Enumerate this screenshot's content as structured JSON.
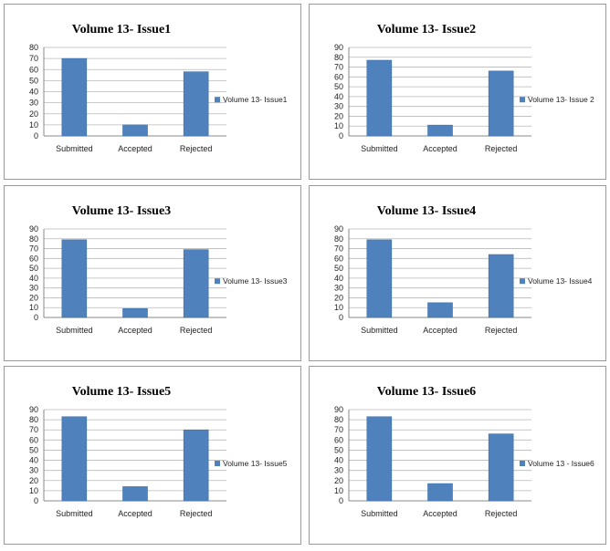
{
  "chart_data": [
    {
      "type": "bar",
      "title": "Volume 13- Issue1",
      "categories": [
        "Submitted",
        "Accepted",
        "Rejected"
      ],
      "series": [
        {
          "name": "Volume 13- Issue1",
          "values": [
            70,
            10,
            58
          ]
        }
      ],
      "ylim": [
        0,
        80
      ],
      "yticks": [
        "0",
        "10",
        "20",
        "30",
        "40",
        "50",
        "60",
        "70",
        "80"
      ],
      "grid": true,
      "legend": "right"
    },
    {
      "type": "bar",
      "title": "Volume 13- Issue2",
      "categories": [
        "Submitted",
        "Accepted",
        "Rejected"
      ],
      "series": [
        {
          "name": "Volume 13- Issue 2",
          "values": [
            77,
            11,
            66
          ]
        }
      ],
      "ylim": [
        0,
        90
      ],
      "yticks": [
        "0",
        "10",
        "20",
        "30",
        "40",
        "50",
        "60",
        "70",
        "80",
        "90"
      ],
      "grid": true,
      "legend": "right"
    },
    {
      "type": "bar",
      "title": "Volume 13- Issue3",
      "categories": [
        "Submitted",
        "Accepted",
        "Rejected"
      ],
      "series": [
        {
          "name": "Volume 13- Issue3",
          "values": [
            79,
            9,
            69
          ]
        }
      ],
      "ylim": [
        0,
        90
      ],
      "yticks": [
        "0",
        "10",
        "20",
        "30",
        "40",
        "50",
        "60",
        "70",
        "80",
        "90"
      ],
      "grid": true,
      "legend": "right"
    },
    {
      "type": "bar",
      "title": "Volume 13- Issue4",
      "categories": [
        "Submitted",
        "Accepted",
        "Rejected"
      ],
      "series": [
        {
          "name": "Volume 13- Issue4",
          "values": [
            79,
            15,
            64
          ]
        }
      ],
      "ylim": [
        0,
        90
      ],
      "yticks": [
        "0",
        "10",
        "20",
        "30",
        "40",
        "50",
        "60",
        "70",
        "80",
        "90"
      ],
      "grid": true,
      "legend": "right"
    },
    {
      "type": "bar",
      "title": "Volume 13- Issue5",
      "categories": [
        "Submitted",
        "Accepted",
        "Rejected"
      ],
      "series": [
        {
          "name": "Volume 13- Issue5",
          "values": [
            83,
            14,
            70
          ]
        }
      ],
      "ylim": [
        0,
        90
      ],
      "yticks": [
        "0",
        "10",
        "20",
        "30",
        "40",
        "50",
        "60",
        "70",
        "80",
        "90"
      ],
      "grid": true,
      "legend": "right"
    },
    {
      "type": "bar",
      "title": "Volume 13- Issue6",
      "categories": [
        "Submitted",
        "Accepted",
        "Rejected"
      ],
      "series": [
        {
          "name": "Volume 13 - Issue6",
          "values": [
            83,
            17,
            66
          ]
        }
      ],
      "ylim": [
        0,
        90
      ],
      "yticks": [
        "0",
        "10",
        "20",
        "30",
        "40",
        "50",
        "60",
        "70",
        "80",
        "90"
      ],
      "grid": true,
      "legend": "right"
    }
  ],
  "colors": {
    "bar": "#4f81bd",
    "bar_edge": "#3f6fa8"
  }
}
